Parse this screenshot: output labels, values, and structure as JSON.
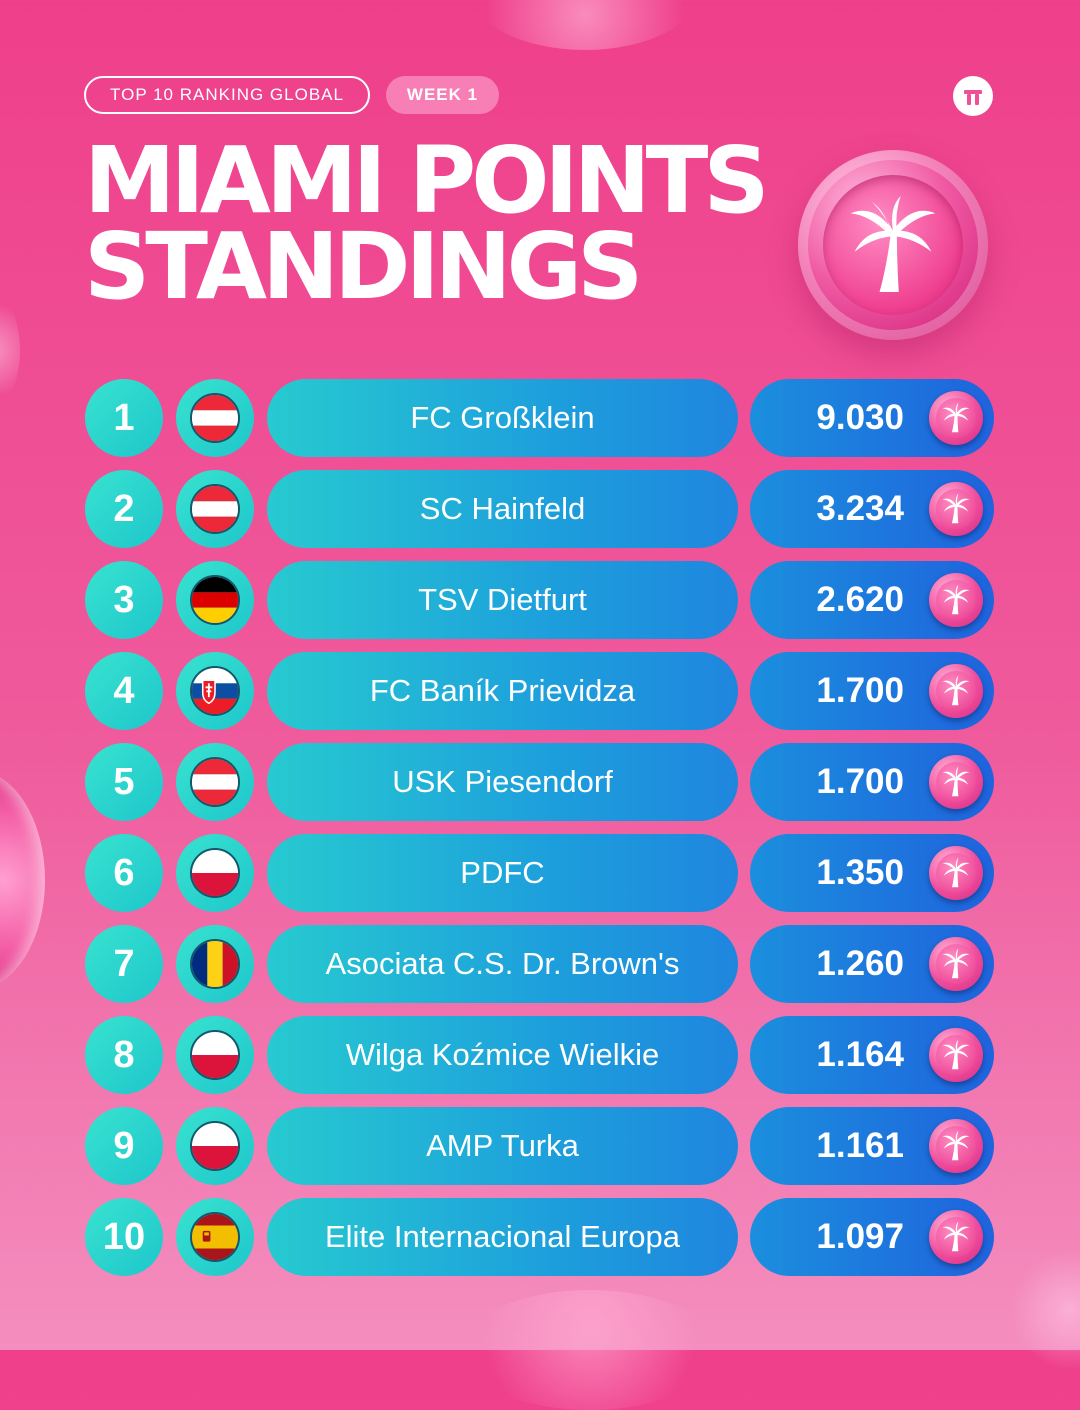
{
  "header": {
    "ranking_label": "TOP 10 RANKING GLOBAL",
    "week_label": "WEEK 1",
    "title_line1": "MIAMI POINTS",
    "title_line2": "STANDINGS",
    "brand_icon": "brand-logo-icon",
    "badge_icon": "palm-tree-icon"
  },
  "colors": {
    "background": "#ef4f95",
    "rank_circle": "#2cd6ce",
    "team_pill": "#1fa8da",
    "points_pill": "#1f6fdd",
    "coin": "#ee4a9a"
  },
  "standings": [
    {
      "rank": "1",
      "flag": "austria",
      "team": "FC Großklein",
      "points": "9.030"
    },
    {
      "rank": "2",
      "flag": "austria",
      "team": "SC Hainfeld",
      "points": "3.234"
    },
    {
      "rank": "3",
      "flag": "germany",
      "team": "TSV Dietfurt",
      "points": "2.620"
    },
    {
      "rank": "4",
      "flag": "slovakia",
      "team": "FC Baník Prievidza",
      "points": "1.700"
    },
    {
      "rank": "5",
      "flag": "austria",
      "team": "USK Piesendorf",
      "points": "1.700"
    },
    {
      "rank": "6",
      "flag": "poland",
      "team": "PDFC",
      "points": "1.350"
    },
    {
      "rank": "7",
      "flag": "romania",
      "team": "Asociata C.S. Dr. Brown's",
      "points": "1.260"
    },
    {
      "rank": "8",
      "flag": "poland",
      "team": "Wilga Koźmice Wielkie",
      "points": "1.164"
    },
    {
      "rank": "9",
      "flag": "poland",
      "team": "AMP Turka",
      "points": "1.161"
    },
    {
      "rank": "10",
      "flag": "spain",
      "team": "Elite Internacional Europa",
      "points": "1.097"
    }
  ]
}
